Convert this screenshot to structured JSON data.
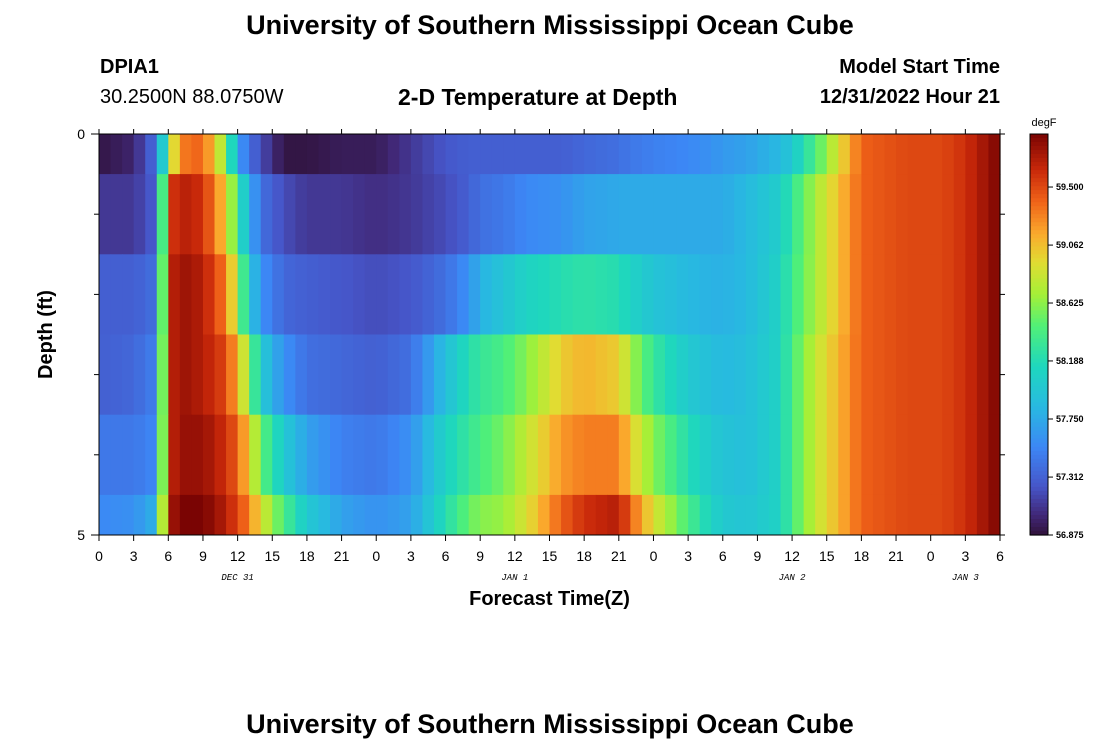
{
  "header": {
    "title": "University of Southern Mississippi Ocean Cube",
    "station_id": "DPIA1",
    "coordinates": "30.2500N  88.0750W",
    "subtitle": "2-D Temperature at Depth",
    "start_label": "Model Start Time",
    "start_value": "12/31/2022 Hour 21"
  },
  "footer": {
    "title": "University of Southern Mississippi Ocean Cube"
  },
  "chart_data": {
    "type": "heatmap",
    "title": "2-D Temperature at Depth",
    "xlabel": "Forecast Time(Z)",
    "ylabel": "Depth (ft)",
    "x_tick_labels": [
      "0",
      "3",
      "6",
      "9",
      "12",
      "15",
      "18",
      "21",
      "0",
      "3",
      "6",
      "9",
      "12",
      "15",
      "18",
      "21",
      "0",
      "3",
      "6",
      "9",
      "12",
      "15",
      "18",
      "21",
      "0",
      "3",
      "6"
    ],
    "date_labels": [
      {
        "label": "DEC 31",
        "at_tick": 4
      },
      {
        "label": "JAN 1",
        "at_tick": 12
      },
      {
        "label": "JAN 2",
        "at_tick": 20
      },
      {
        "label": "JAN 3",
        "at_tick": 25
      }
    ],
    "y_tick_labels": [
      "0",
      "5"
    ],
    "ylim": [
      0,
      5
    ],
    "x_hours_range": [
      0,
      78
    ],
    "colorbar": {
      "unit": "degF",
      "min": 56.875,
      "max": 59.9,
      "tick_labels": [
        "59.500",
        "59.062",
        "58.625",
        "58.188",
        "57.750",
        "57.312",
        "56.875"
      ],
      "tick_values": [
        59.5,
        59.062,
        58.625,
        58.188,
        57.75,
        57.312,
        56.875
      ]
    },
    "depth_bands": [
      0,
      0.5,
      1.5,
      2.5,
      3.5,
      4.5,
      5
    ],
    "x_hours": [
      0,
      3,
      5,
      6,
      7,
      9,
      11,
      12,
      13,
      14,
      16,
      18,
      21,
      24,
      27,
      30,
      32,
      33,
      35,
      37,
      40,
      42,
      45,
      46,
      48,
      51,
      53,
      54,
      56,
      59,
      60,
      62,
      66,
      70,
      72,
      73,
      75,
      77,
      78
    ],
    "temperature": [
      [
        56.9,
        57.0,
        57.4,
        58.6,
        59.3,
        59.4,
        58.6,
        57.7,
        57.4,
        57.2,
        56.9,
        56.9,
        56.95,
        56.95,
        57.1,
        57.25,
        57.3,
        57.3,
        57.3,
        57.3,
        57.3,
        57.35,
        57.4,
        57.45,
        57.5,
        57.55,
        57.6,
        57.65,
        57.7,
        57.85,
        58.0,
        58.4,
        59.4,
        59.5,
        59.5,
        59.5,
        59.6,
        59.8,
        59.9
      ],
      [
        57.1,
        57.1,
        57.3,
        59.5,
        59.7,
        59.6,
        59.0,
        58.3,
        57.8,
        57.4,
        57.2,
        57.1,
        57.1,
        57.05,
        57.1,
        57.2,
        57.3,
        57.4,
        57.45,
        57.55,
        57.6,
        57.7,
        57.75,
        57.75,
        57.75,
        57.75,
        57.75,
        57.75,
        57.85,
        58.05,
        58.3,
        58.7,
        59.4,
        59.5,
        59.5,
        59.5,
        59.6,
        59.8,
        59.9
      ],
      [
        57.3,
        57.3,
        57.4,
        59.6,
        59.8,
        59.7,
        59.3,
        58.7,
        58.0,
        57.6,
        57.35,
        57.3,
        57.25,
        57.2,
        57.25,
        57.4,
        57.6,
        57.8,
        57.95,
        58.1,
        58.2,
        58.25,
        58.2,
        58.1,
        57.95,
        57.85,
        57.8,
        57.8,
        57.85,
        58.1,
        58.35,
        58.7,
        59.4,
        59.5,
        59.5,
        59.5,
        59.6,
        59.8,
        59.9
      ],
      [
        57.3,
        57.35,
        57.5,
        59.6,
        59.8,
        59.7,
        59.5,
        59.1,
        58.6,
        58.0,
        57.6,
        57.4,
        57.35,
        57.3,
        57.4,
        57.9,
        58.2,
        58.3,
        58.4,
        58.6,
        59.0,
        59.1,
        59.0,
        58.7,
        58.3,
        58.0,
        57.9,
        57.85,
        57.9,
        58.1,
        58.4,
        58.8,
        59.4,
        59.5,
        59.5,
        59.5,
        59.6,
        59.8,
        59.9
      ],
      [
        57.45,
        57.45,
        57.55,
        59.6,
        59.8,
        59.8,
        59.6,
        59.4,
        59.0,
        58.5,
        58.0,
        57.7,
        57.5,
        57.45,
        57.6,
        58.1,
        58.3,
        58.4,
        58.55,
        58.8,
        59.2,
        59.3,
        59.3,
        59.0,
        58.6,
        58.2,
        58.0,
        57.95,
        57.9,
        58.1,
        58.4,
        58.8,
        59.4,
        59.5,
        59.5,
        59.5,
        59.6,
        59.8,
        59.9
      ],
      [
        57.55,
        57.6,
        57.8,
        59.7,
        59.9,
        59.9,
        59.7,
        59.5,
        59.3,
        58.9,
        58.4,
        58.0,
        57.7,
        57.6,
        57.7,
        58.2,
        58.5,
        58.6,
        58.65,
        58.9,
        59.4,
        59.6,
        59.7,
        59.4,
        58.9,
        58.4,
        58.1,
        58.0,
        57.95,
        58.1,
        58.4,
        58.8,
        59.4,
        59.5,
        59.5,
        59.5,
        59.6,
        59.8,
        59.9
      ]
    ]
  }
}
